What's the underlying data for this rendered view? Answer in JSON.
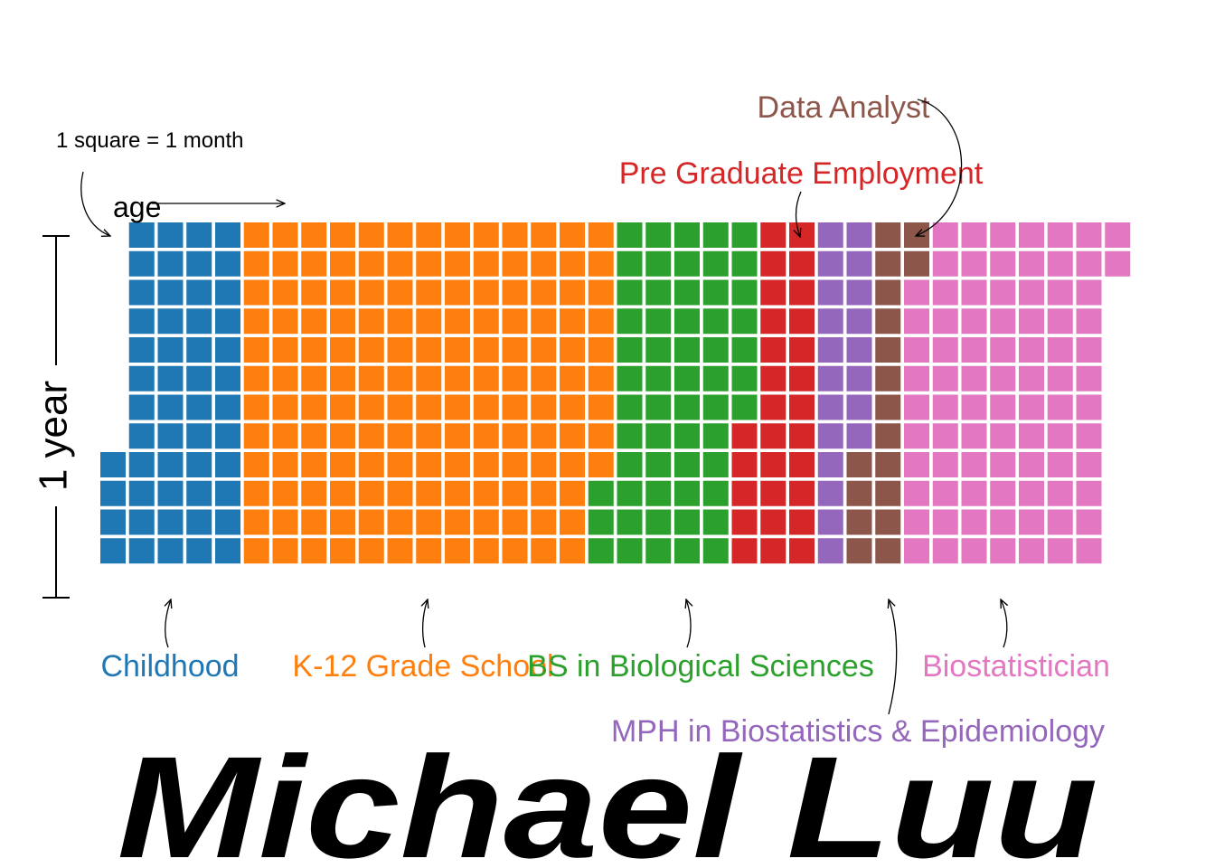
{
  "chart_data": {
    "type": "waffle",
    "title": "Michael Luu",
    "unit_note": "1 square = 1 month",
    "x_axis_label": "age",
    "y_axis_label": "1 year",
    "rows_per_column": 12,
    "first_month_offset": 8,
    "series": [
      {
        "name": "Childhood",
        "months": 52,
        "color": "#1f77b4"
      },
      {
        "name": "K-12 Grade School",
        "months": 153,
        "color": "#ff7f0e"
      },
      {
        "name": "BS in Biological Sciences",
        "months": 58,
        "color": "#2ca02c"
      },
      {
        "name": "Pre Graduate Employment",
        "months": 29,
        "color": "#d62728"
      },
      {
        "name": "MPH in Biostatistics & Epidemiology",
        "months": 20,
        "color": "#9467bd"
      },
      {
        "name": "Data Analyst",
        "months": 18,
        "color": "#8c564b"
      },
      {
        "name": "Biostatistician",
        "months": 84,
        "color": "#e377c2"
      }
    ]
  }
}
